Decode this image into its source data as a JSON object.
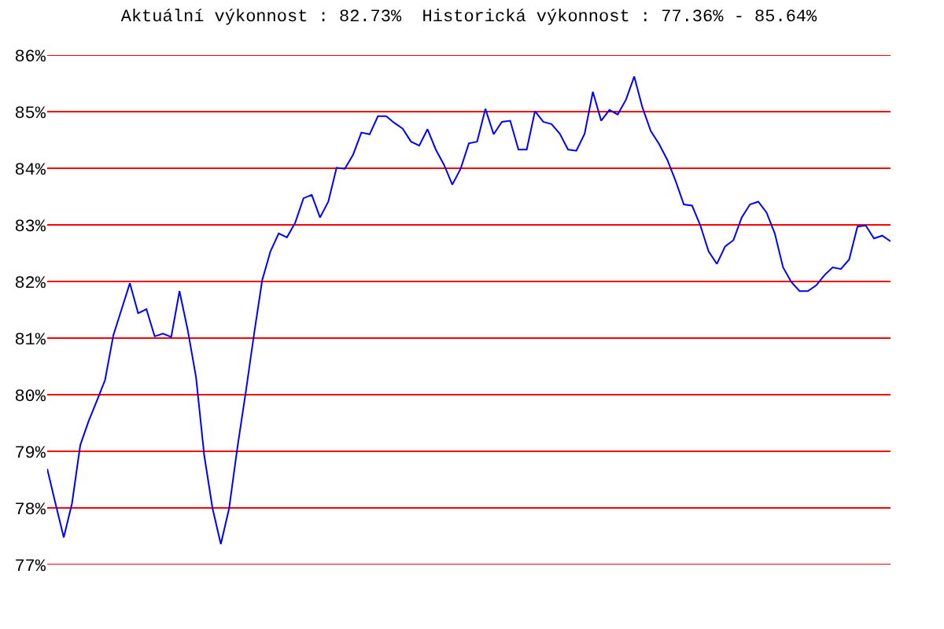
{
  "chart_data": {
    "type": "line",
    "title": "Aktuální výkonnost : 82.73%  Historická výkonnost : 77.36% - 85.64%",
    "categories": [
      null,
      null,
      null,
      null,
      null,
      null,
      null,
      null,
      null,
      null,
      null,
      null,
      null,
      null,
      null,
      null,
      null,
      null,
      null,
      null,
      null,
      null,
      null,
      null,
      null,
      null,
      null,
      null,
      null,
      null,
      null,
      null,
      null,
      null,
      null,
      null,
      null,
      null,
      null,
      null,
      null,
      null,
      null,
      null,
      null,
      null,
      null,
      null,
      null,
      null,
      null,
      null,
      null,
      null,
      null,
      null,
      null,
      null,
      null,
      null,
      null,
      null,
      null,
      null,
      null,
      null,
      null,
      null,
      null,
      null,
      null,
      null,
      null,
      null,
      null,
      null,
      null,
      null,
      null,
      null,
      null,
      null,
      null,
      null,
      null,
      null,
      null,
      null,
      null,
      null,
      null,
      null,
      null,
      null,
      null,
      null,
      null,
      null,
      null,
      null,
      null,
      null,
      null
    ],
    "series": [
      {
        "color": "#0000ff",
        "values": [
          78.69,
          78.08,
          77.48,
          78.08,
          79.11,
          79.53,
          79.89,
          80.26,
          81.05,
          81.51,
          81.97,
          81.44,
          81.51,
          81.03,
          81.08,
          81.02,
          81.83,
          81.14,
          80.31,
          78.92,
          77.99,
          77.36,
          77.99,
          79.06,
          80.03,
          81.05,
          82.02,
          82.53,
          82.85,
          82.78,
          83.04,
          83.47,
          83.53,
          83.13,
          83.41,
          84.01,
          83.99,
          84.24,
          84.63,
          84.6,
          84.92,
          84.92,
          84.8,
          84.7,
          84.47,
          84.4,
          84.69,
          84.33,
          84.06,
          83.71,
          83.99,
          84.44,
          84.47,
          85.05,
          84.6,
          84.82,
          84.84,
          84.33,
          84.33,
          85.01,
          84.82,
          84.78,
          84.61,
          84.33,
          84.31,
          84.61,
          85.35,
          84.84,
          85.03,
          84.95,
          85.21,
          85.62,
          85.07,
          84.66,
          84.43,
          84.15,
          83.78,
          83.36,
          83.34,
          82.99,
          82.53,
          82.31,
          82.62,
          82.73,
          83.13,
          83.36,
          83.41,
          83.22,
          82.85,
          82.25,
          81.99,
          81.83,
          81.83,
          81.93,
          82.11,
          82.25,
          82.22,
          82.39,
          82.97,
          82.99,
          82.76,
          82.81,
          82.71
        ]
      }
    ],
    "ylim": [
      77,
      86
    ],
    "yticks": [
      {
        "value": 77,
        "label": "77%"
      },
      {
        "value": 78,
        "label": "78%"
      },
      {
        "value": 79,
        "label": "79%"
      },
      {
        "value": 80,
        "label": "80%"
      },
      {
        "value": 81,
        "label": "81%"
      },
      {
        "value": 82,
        "label": "82%"
      },
      {
        "value": 83,
        "label": "83%"
      },
      {
        "value": 84,
        "label": "84%"
      },
      {
        "value": 85,
        "label": "85%"
      },
      {
        "value": 86,
        "label": "86%"
      }
    ],
    "grid": "y",
    "marker": "none",
    "line_style": "solid",
    "tick_labels": "y"
  }
}
